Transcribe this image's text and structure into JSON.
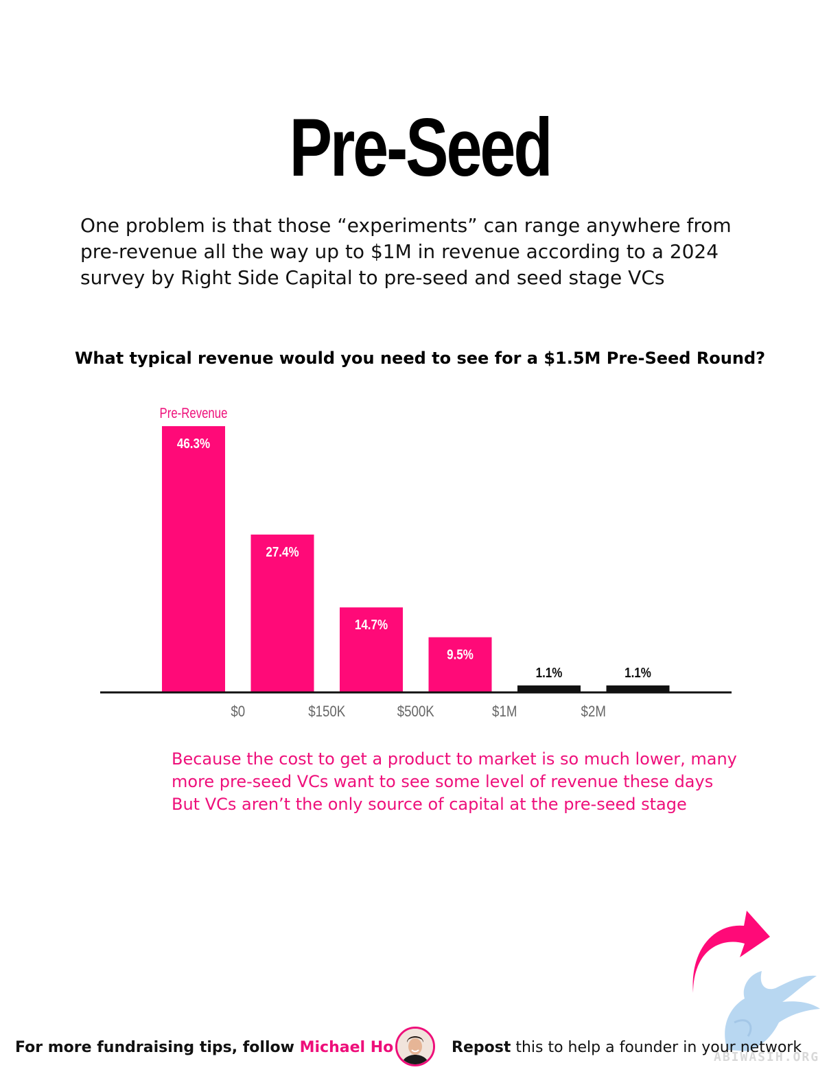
{
  "header": {
    "title": "Pre-Seed",
    "intro_lines": [
      "One problem is that those “experiments” can range anywhere from",
      "pre-revenue all the way up to $1M in revenue according to a 2024",
      "survey by Right Side Capital to pre-seed and seed stage VCs"
    ]
  },
  "chart_data": {
    "type": "bar",
    "title": "What typical revenue would you need to see for a $1.5M Pre-Seed Round?",
    "categories": [
      "Pre-Revenue",
      "$0",
      "$150K",
      "$500K",
      "$1M",
      "$2M"
    ],
    "values": [
      46.3,
      27.4,
      14.7,
      9.5,
      1.1,
      1.1
    ],
    "value_labels": [
      "46.3%",
      "27.4%",
      "14.7%",
      "9.5%",
      "1.1%",
      "1.1%"
    ],
    "tick_labels": [
      "$0",
      "$150K",
      "$500K",
      "$1M",
      "$2M"
    ],
    "top_label": "Pre-Revenue",
    "colors": [
      "#ff0a78",
      "#ff0a78",
      "#ff0a78",
      "#ff0a78",
      "#111111",
      "#111111"
    ],
    "ylim": [
      0,
      46.3
    ],
    "grid": false,
    "legend": "none"
  },
  "caption_lines": [
    "Because the cost to get a product to market is so much lower, many",
    "more pre-seed VCs want to see some level of revenue these days",
    "But VCs aren’t the only source of capital at the pre-seed stage"
  ],
  "footer": {
    "follow_text": "For more fundraising tips, follow ",
    "author_name": "Michael Ho",
    "repost_bold": "Repost",
    "repost_rest": " this to help a founder in your network"
  },
  "watermark": "ABIWASIH.ORG",
  "colors": {
    "accent": "#ee0f7a",
    "text": "#111111"
  }
}
